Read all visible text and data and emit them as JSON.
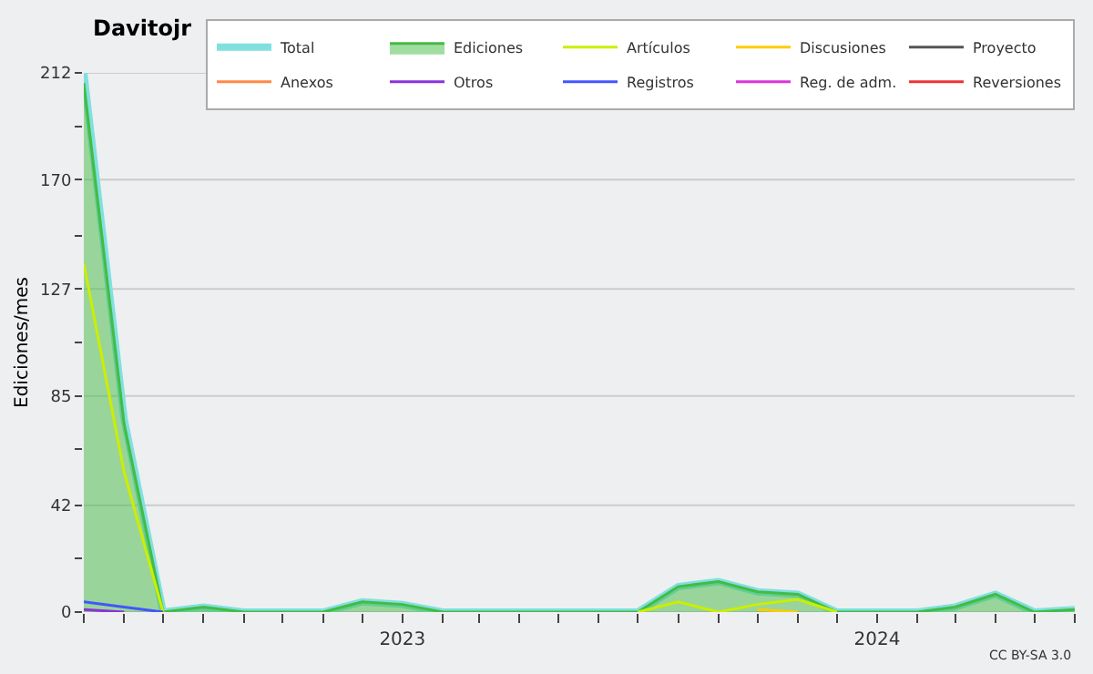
{
  "chart_data": {
    "type": "line",
    "title": "Davitojr",
    "ylabel": "Ediciones/mes",
    "x": [
      "2022-05",
      "2022-06",
      "2022-07",
      "2022-08",
      "2022-09",
      "2022-10",
      "2022-11",
      "2022-12",
      "2023-01",
      "2023-02",
      "2023-03",
      "2023-04",
      "2023-05",
      "2023-06",
      "2023-07",
      "2023-08",
      "2023-09",
      "2023-10",
      "2023-11",
      "2023-12",
      "2024-01",
      "2024-02",
      "2024-03",
      "2024-04",
      "2024-05",
      "2024-06"
    ],
    "series": [
      {
        "name": "Total",
        "color": "#80e0e0",
        "values": [
          212,
          76,
          0,
          2,
          0,
          0,
          0,
          4,
          3,
          0,
          0,
          0,
          0,
          0,
          0,
          10,
          12,
          8,
          7,
          0,
          0,
          0,
          2,
          7,
          0,
          1
        ]
      },
      {
        "name": "Ediciones",
        "color": "#44bb44",
        "type": "area",
        "values": [
          208,
          74,
          0,
          2,
          0,
          0,
          0,
          4,
          3,
          0,
          0,
          0,
          0,
          0,
          0,
          10,
          12,
          8,
          7,
          0,
          0,
          0,
          2,
          7,
          0,
          1
        ]
      },
      {
        "name": "Artículos",
        "color": "#ccee00",
        "values": [
          137,
          55,
          0,
          null,
          null,
          null,
          null,
          null,
          null,
          null,
          null,
          null,
          null,
          null,
          0,
          4,
          0,
          3,
          5,
          0,
          null,
          null,
          null,
          null,
          null,
          null
        ]
      },
      {
        "name": "Discusiones",
        "color": "#ffcc00",
        "values": [
          null,
          null,
          null,
          null,
          null,
          null,
          null,
          null,
          null,
          null,
          null,
          null,
          null,
          null,
          null,
          null,
          null,
          1,
          0,
          null,
          null,
          null,
          null,
          null,
          null,
          null
        ]
      },
      {
        "name": "Proyecto",
        "color": "#555555",
        "values": [
          null,
          null,
          null,
          null,
          null,
          null,
          null,
          null,
          null,
          null,
          null,
          null,
          null,
          null,
          null,
          null,
          null,
          null,
          null,
          null,
          null,
          null,
          null,
          null,
          null,
          null
        ]
      },
      {
        "name": "Anexos",
        "color": "#ff8844",
        "values": [
          null,
          null,
          null,
          null,
          null,
          null,
          null,
          null,
          null,
          null,
          null,
          null,
          null,
          null,
          null,
          null,
          null,
          null,
          null,
          null,
          null,
          null,
          null,
          null,
          null,
          null
        ]
      },
      {
        "name": "Otros",
        "color": "#8833dd",
        "values": [
          1,
          0,
          null,
          null,
          null,
          null,
          null,
          null,
          null,
          null,
          null,
          null,
          null,
          null,
          null,
          null,
          null,
          null,
          null,
          null,
          null,
          null,
          null,
          null,
          null,
          null
        ]
      },
      {
        "name": "Registros",
        "color": "#4455ff",
        "values": [
          4,
          2,
          0,
          null,
          null,
          null,
          null,
          null,
          null,
          null,
          null,
          null,
          null,
          null,
          null,
          null,
          null,
          null,
          null,
          null,
          null,
          null,
          null,
          null,
          null,
          null
        ]
      },
      {
        "name": "Reg. de adm.",
        "color": "#dd33dd",
        "values": [
          null,
          null,
          null,
          null,
          null,
          null,
          null,
          null,
          null,
          null,
          null,
          null,
          null,
          null,
          null,
          null,
          null,
          null,
          null,
          null,
          null,
          null,
          null,
          null,
          null,
          null
        ]
      },
      {
        "name": "Reversiones",
        "color": "#ee3333",
        "values": [
          null,
          null,
          null,
          null,
          null,
          null,
          null,
          null,
          null,
          null,
          null,
          null,
          null,
          null,
          null,
          null,
          null,
          null,
          null,
          null,
          null,
          null,
          null,
          null,
          null,
          null
        ]
      }
    ],
    "xlim": [
      "2022-05",
      "2024-06"
    ],
    "xticks": [
      {
        "value": "2022-05",
        "label": null
      },
      {
        "value": "2022-06",
        "label": null
      },
      {
        "value": "2022-07",
        "label": null
      },
      {
        "value": "2022-08",
        "label": null
      },
      {
        "value": "2022-09",
        "label": null
      },
      {
        "value": "2022-10",
        "label": null
      },
      {
        "value": "2022-11",
        "label": null
      },
      {
        "value": "2022-12",
        "label": null
      },
      {
        "value": "2023-01",
        "label": "2023"
      },
      {
        "value": "2023-02",
        "label": null
      },
      {
        "value": "2023-03",
        "label": null
      },
      {
        "value": "2023-04",
        "label": null
      },
      {
        "value": "2023-05",
        "label": null
      },
      {
        "value": "2023-06",
        "label": null
      },
      {
        "value": "2023-07",
        "label": null
      },
      {
        "value": "2023-08",
        "label": null
      },
      {
        "value": "2023-09",
        "label": null
      },
      {
        "value": "2023-10",
        "label": null
      },
      {
        "value": "2023-11",
        "label": null
      },
      {
        "value": "2023-12",
        "label": null
      },
      {
        "value": "2024-01",
        "label": "2024"
      },
      {
        "value": "2024-02",
        "label": null
      },
      {
        "value": "2024-03",
        "label": null
      },
      {
        "value": "2024-04",
        "label": null
      },
      {
        "value": "2024-05",
        "label": null
      },
      {
        "value": "2024-06",
        "label": null
      }
    ],
    "ylim": [
      0,
      212
    ],
    "yticks": [
      0,
      {
        "value": 21,
        "label": null
      },
      42,
      {
        "value": 64,
        "label": null
      },
      85,
      {
        "value": 106,
        "label": null
      },
      127,
      {
        "value": 148,
        "label": null
      },
      170,
      {
        "value": 191,
        "label": null
      },
      212
    ],
    "grid": "y",
    "legend": "top right",
    "annotations": [
      "CC BY-SA 3.0"
    ]
  }
}
